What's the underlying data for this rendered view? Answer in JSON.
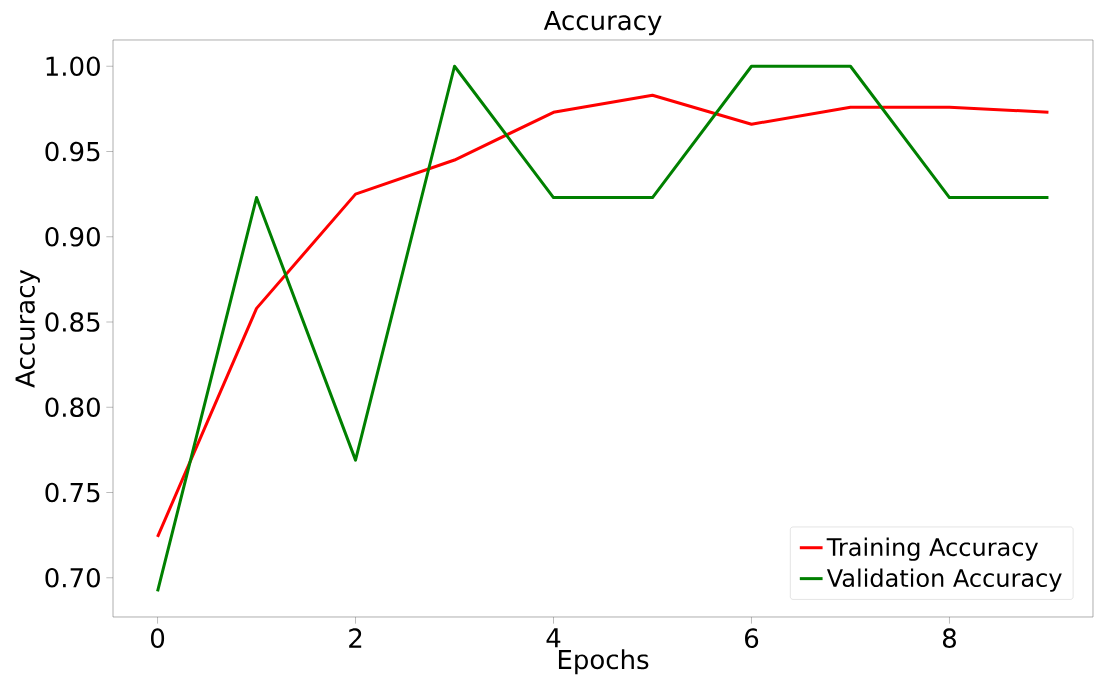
{
  "chart_data": {
    "type": "line",
    "title": "Accuracy",
    "xlabel": "Epochs",
    "ylabel": "Accuracy",
    "x": [
      0,
      1,
      2,
      3,
      4,
      5,
      6,
      7,
      8,
      9
    ],
    "series": [
      {
        "name": "Training Accuracy",
        "color": "#ff0000",
        "values": [
          0.724,
          0.858,
          0.925,
          0.945,
          0.973,
          0.983,
          0.966,
          0.976,
          0.976,
          0.973
        ]
      },
      {
        "name": "Validation Accuracy",
        "color": "#008000",
        "values": [
          0.692,
          0.923,
          0.769,
          1.0,
          0.923,
          0.923,
          1.0,
          1.0,
          0.923,
          0.923
        ]
      }
    ],
    "xlim": [
      -0.45,
      9.45
    ],
    "ylim": [
      0.677,
      1.0154
    ],
    "xticks": [
      0,
      2,
      4,
      6,
      8
    ],
    "yticks": [
      {
        "value": 0.7,
        "label": "0.70"
      },
      {
        "value": 0.75,
        "label": "0.75"
      },
      {
        "value": 0.8,
        "label": "0.80"
      },
      {
        "value": 0.85,
        "label": "0.85"
      },
      {
        "value": 0.9,
        "label": "0.90"
      },
      {
        "value": 0.95,
        "label": "0.95"
      },
      {
        "value": 1.0,
        "label": "1.00"
      }
    ],
    "legend": "bottom right",
    "grid": false,
    "marker": "none",
    "line_style": "solid"
  }
}
